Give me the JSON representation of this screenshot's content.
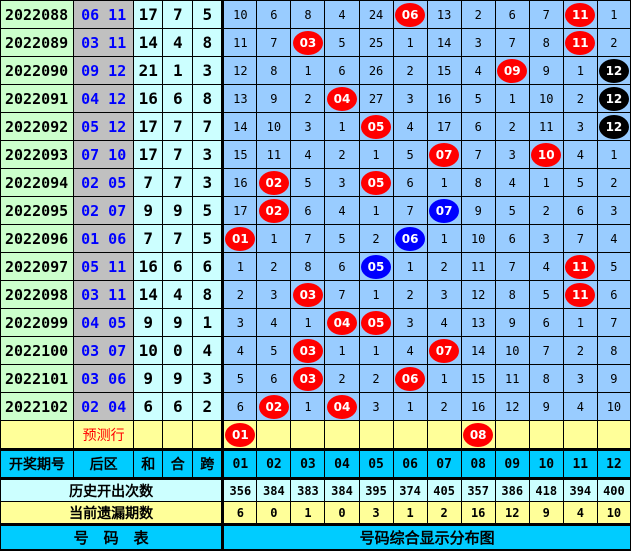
{
  "colors": {
    "hit": "#ff0000",
    "repeat_blue": "#0000ff",
    "repeat_black": "#000000",
    "grid": "#99ccff",
    "period": "#ccffcc",
    "back": "#c0c0c0",
    "header": "#00ccff",
    "highlight": "#ffff99"
  },
  "rows": [
    {
      "period": "2022088",
      "back": "06  11",
      "sum": "17",
      "he": "7",
      "kua": "5",
      "cells": [
        "10",
        "6",
        "8",
        "4",
        "24",
        {
          "n": "06",
          "c": "red"
        },
        "13",
        "2",
        "6",
        "7",
        {
          "n": "11",
          "c": "red"
        },
        "1"
      ]
    },
    {
      "period": "2022089",
      "back": "03  11",
      "sum": "14",
      "he": "4",
      "kua": "8",
      "cells": [
        "11",
        "7",
        {
          "n": "03",
          "c": "red"
        },
        "5",
        "25",
        "1",
        "14",
        "3",
        "7",
        "8",
        {
          "n": "11",
          "c": "red"
        },
        "2"
      ]
    },
    {
      "period": "2022090",
      "back": "09  12",
      "sum": "21",
      "he": "1",
      "kua": "3",
      "cells": [
        "12",
        "8",
        "1",
        "6",
        "26",
        "2",
        "15",
        "4",
        {
          "n": "09",
          "c": "red"
        },
        "9",
        "1",
        {
          "n": "12",
          "c": "black"
        }
      ]
    },
    {
      "period": "2022091",
      "back": "04  12",
      "sum": "16",
      "he": "6",
      "kua": "8",
      "cells": [
        "13",
        "9",
        "2",
        {
          "n": "04",
          "c": "red"
        },
        "27",
        "3",
        "16",
        "5",
        "1",
        "10",
        "2",
        {
          "n": "12",
          "c": "black"
        }
      ]
    },
    {
      "period": "2022092",
      "back": "05  12",
      "sum": "17",
      "he": "7",
      "kua": "7",
      "cells": [
        "14",
        "10",
        "3",
        "1",
        {
          "n": "05",
          "c": "red"
        },
        "4",
        "17",
        "6",
        "2",
        "11",
        "3",
        {
          "n": "12",
          "c": "black"
        }
      ]
    },
    {
      "period": "2022093",
      "back": "07  10",
      "sum": "17",
      "he": "7",
      "kua": "3",
      "cells": [
        "15",
        "11",
        "4",
        "2",
        "1",
        "5",
        {
          "n": "07",
          "c": "red"
        },
        "7",
        "3",
        {
          "n": "10",
          "c": "red"
        },
        "4",
        "1"
      ]
    },
    {
      "period": "2022094",
      "back": "02  05",
      "sum": "7",
      "he": "7",
      "kua": "3",
      "cells": [
        "16",
        {
          "n": "02",
          "c": "red"
        },
        "5",
        "3",
        {
          "n": "05",
          "c": "red"
        },
        "6",
        "1",
        "8",
        "4",
        "1",
        "5",
        "2"
      ]
    },
    {
      "period": "2022095",
      "back": "02  07",
      "sum": "9",
      "he": "9",
      "kua": "5",
      "cells": [
        "17",
        {
          "n": "02",
          "c": "red"
        },
        "6",
        "4",
        "1",
        "7",
        {
          "n": "07",
          "c": "blue"
        },
        "9",
        "5",
        "2",
        "6",
        "3"
      ]
    },
    {
      "period": "2022096",
      "back": "01  06",
      "sum": "7",
      "he": "7",
      "kua": "5",
      "cells": [
        {
          "n": "01",
          "c": "red"
        },
        "1",
        "7",
        "5",
        "2",
        {
          "n": "06",
          "c": "blue"
        },
        "1",
        "10",
        "6",
        "3",
        "7",
        "4"
      ]
    },
    {
      "period": "2022097",
      "back": "05  11",
      "sum": "16",
      "he": "6",
      "kua": "6",
      "cells": [
        "1",
        "2",
        "8",
        "6",
        {
          "n": "05",
          "c": "blue"
        },
        "1",
        "2",
        "11",
        "7",
        "4",
        {
          "n": "11",
          "c": "red"
        },
        "5"
      ]
    },
    {
      "period": "2022098",
      "back": "03  11",
      "sum": "14",
      "he": "4",
      "kua": "8",
      "cells": [
        "2",
        "3",
        {
          "n": "03",
          "c": "red"
        },
        "7",
        "1",
        "2",
        "3",
        "12",
        "8",
        "5",
        {
          "n": "11",
          "c": "red"
        },
        "6"
      ]
    },
    {
      "period": "2022099",
      "back": "04  05",
      "sum": "9",
      "he": "9",
      "kua": "1",
      "cells": [
        "3",
        "4",
        "1",
        {
          "n": "04",
          "c": "red"
        },
        {
          "n": "05",
          "c": "red"
        },
        "3",
        "4",
        "13",
        "9",
        "6",
        "1",
        "7"
      ]
    },
    {
      "period": "2022100",
      "back": "03  07",
      "sum": "10",
      "he": "0",
      "kua": "4",
      "cells": [
        "4",
        "5",
        {
          "n": "03",
          "c": "red"
        },
        "1",
        "1",
        "4",
        {
          "n": "07",
          "c": "red"
        },
        "14",
        "10",
        "7",
        "2",
        "8"
      ]
    },
    {
      "period": "2022101",
      "back": "03  06",
      "sum": "9",
      "he": "9",
      "kua": "3",
      "cells": [
        "5",
        "6",
        {
          "n": "03",
          "c": "red"
        },
        "2",
        "2",
        {
          "n": "06",
          "c": "red"
        },
        "1",
        "15",
        "11",
        "8",
        "3",
        "9"
      ]
    },
    {
      "period": "2022102",
      "back": "02  04",
      "sum": "6",
      "he": "6",
      "kua": "2",
      "cells": [
        "6",
        {
          "n": "02",
          "c": "red"
        },
        "1",
        {
          "n": "04",
          "c": "red"
        },
        "3",
        "1",
        "2",
        "16",
        "12",
        "9",
        "4",
        "10"
      ]
    }
  ],
  "prediction": {
    "label": "预测行",
    "cells": [
      {
        "n": "01",
        "c": "red"
      },
      "",
      "",
      "",
      "",
      "",
      "",
      {
        "n": "08",
        "c": "red"
      },
      "",
      "",
      "",
      ""
    ]
  },
  "header": {
    "period": "开奖期号",
    "back": "后区",
    "sum": "和",
    "he": "合",
    "kua": "跨",
    "numbers": [
      "01",
      "02",
      "03",
      "04",
      "05",
      "06",
      "07",
      "08",
      "09",
      "10",
      "11",
      "12"
    ]
  },
  "history": {
    "label": "历史开出次数",
    "values": [
      "356",
      "384",
      "383",
      "384",
      "395",
      "374",
      "405",
      "357",
      "386",
      "418",
      "394",
      "400"
    ]
  },
  "omission": {
    "label": "当前遗漏期数",
    "values": [
      "6",
      "0",
      "1",
      "0",
      "3",
      "1",
      "2",
      "16",
      "12",
      "9",
      "4",
      "10"
    ]
  },
  "footer": {
    "left": "号　码　表",
    "right": "号码综合显示分布图"
  }
}
